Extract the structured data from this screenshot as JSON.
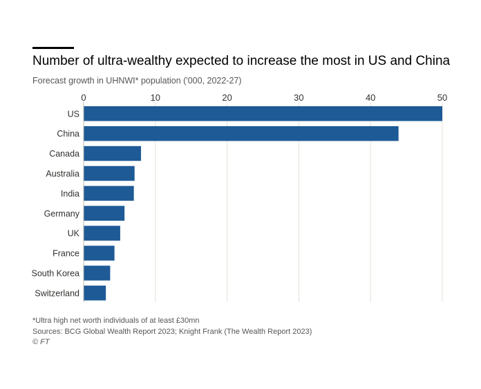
{
  "header": {
    "title": "Number of ultra-wealthy expected to increase the most in US and China",
    "subtitle": "Forecast growth in UHNWI* population ('000, 2022-27)"
  },
  "footer": {
    "note": "*Ultra high net worth individuals of at least £30mn",
    "sources": "Sources: BCG Global Wealth Report 2023; Knight Frank (The Wealth Report 2023)",
    "copyright": "© FT"
  },
  "colors": {
    "bar": "#1e5a96",
    "grid": "#e4e0d7",
    "text": "#33302e"
  },
  "chart_data": {
    "type": "bar",
    "orientation": "horizontal",
    "title": "Number of ultra-wealthy expected to increase the most in US and China",
    "subtitle": "Forecast growth in UHNWI* population ('000, 2022-27)",
    "categories": [
      "US",
      "China",
      "Canada",
      "Australia",
      "India",
      "Germany",
      "UK",
      "France",
      "South Korea",
      "Switzerland"
    ],
    "values": [
      50,
      43.9,
      8,
      7.1,
      7,
      5.7,
      5.1,
      4.3,
      3.7,
      3.1
    ],
    "xlim": [
      0,
      50
    ],
    "xticks": [
      0,
      10,
      20,
      30,
      40,
      50
    ],
    "xaxis_position": "top",
    "grid": true,
    "legend": "none"
  }
}
